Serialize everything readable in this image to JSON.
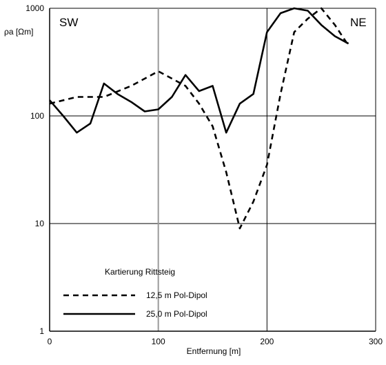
{
  "chart_data": {
    "type": "line",
    "y_scale": "log",
    "xlim": [
      0,
      300
    ],
    "ylim": [
      1,
      1000
    ],
    "xlabel": "Entfernung [m]",
    "ylabel": "ρa [Ωm]",
    "x_ticks": [
      "0",
      "100",
      "200",
      "300"
    ],
    "y_ticks": [
      "1",
      "10",
      "100",
      "1000"
    ],
    "grid": true,
    "region_labels": {
      "left": "SW",
      "right": "NE"
    },
    "legend": {
      "title": "Kartierung Rittsteig",
      "placement": "bottom-left"
    },
    "series": [
      {
        "name": "12,5 m Pol-Dipol",
        "style": "dashed",
        "color": "#000000",
        "points": [
          [
            0,
            130
          ],
          [
            25,
            150
          ],
          [
            50,
            150
          ],
          [
            75,
            190
          ],
          [
            100,
            260
          ],
          [
            125,
            190
          ],
          [
            137.5,
            130
          ],
          [
            150,
            80
          ],
          [
            162.5,
            30
          ],
          [
            175,
            9
          ],
          [
            187.5,
            16
          ],
          [
            200,
            35
          ],
          [
            212.5,
            160
          ],
          [
            225,
            600
          ],
          [
            237.5,
            800
          ],
          [
            250,
            1000
          ],
          [
            262.5,
            700
          ],
          [
            275,
            450
          ]
        ]
      },
      {
        "name": "25,0 m Pol-Dipol",
        "style": "solid",
        "color": "#000000",
        "points": [
          [
            0,
            140
          ],
          [
            12.5,
            100
          ],
          [
            25,
            70
          ],
          [
            37.5,
            85
          ],
          [
            50,
            200
          ],
          [
            62.5,
            160
          ],
          [
            75,
            135
          ],
          [
            87.5,
            110
          ],
          [
            100,
            115
          ],
          [
            112.5,
            150
          ],
          [
            125,
            240
          ],
          [
            137.5,
            170
          ],
          [
            150,
            190
          ],
          [
            162.5,
            70
          ],
          [
            175,
            130
          ],
          [
            187.5,
            160
          ],
          [
            200,
            600
          ],
          [
            212.5,
            900
          ],
          [
            225,
            1000
          ],
          [
            237.5,
            950
          ],
          [
            250,
            700
          ],
          [
            262.5,
            550
          ],
          [
            275,
            470
          ]
        ]
      }
    ]
  }
}
